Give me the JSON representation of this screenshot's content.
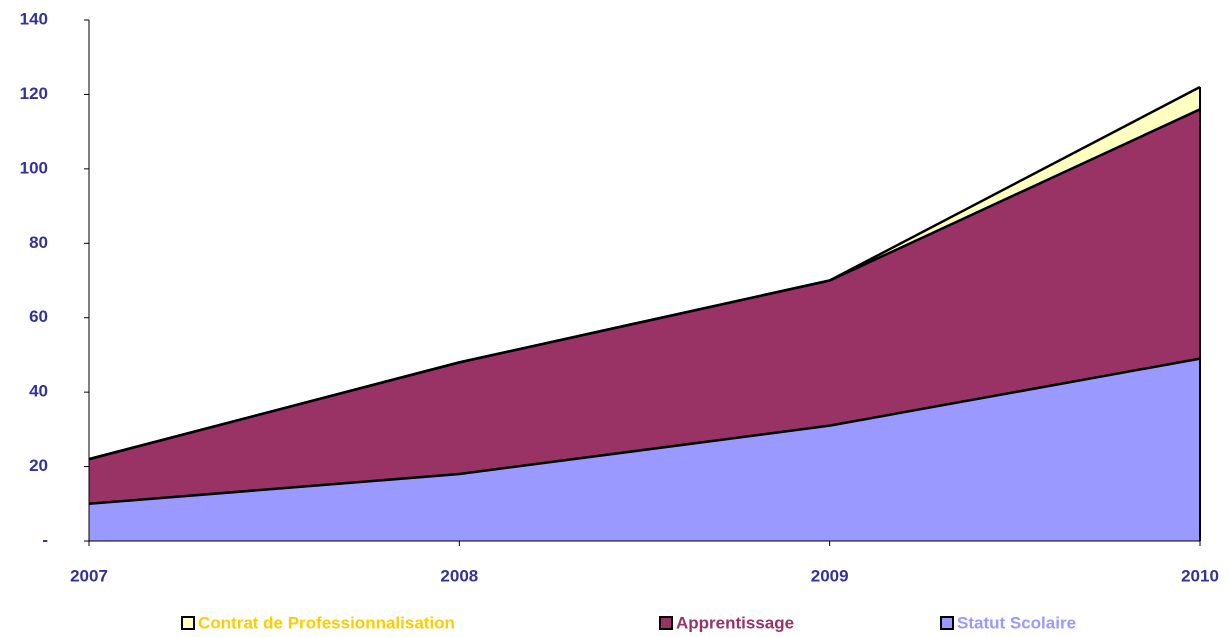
{
  "chart_data": {
    "type": "area",
    "stacked": true,
    "categories": [
      "2007",
      "2008",
      "2009",
      "2010"
    ],
    "series": [
      {
        "name": "Contrat de Professionnalisation",
        "color": "#ffffc0",
        "label_color": "#ffcc00",
        "values": [
          0,
          0,
          0,
          6
        ]
      },
      {
        "name": "Apprentissage",
        "color": "#993366",
        "label_color": "#993366",
        "values": [
          12,
          30,
          39,
          67
        ]
      },
      {
        "name": "Statut Scolaire",
        "color": "#9999ff",
        "label_color": "#9999ff",
        "values": [
          10,
          18,
          31,
          49
        ]
      }
    ],
    "ylim": [
      0,
      140
    ],
    "yticks": [
      {
        "value": 0,
        "label": "-"
      },
      20,
      40,
      60,
      80,
      100,
      120,
      140
    ],
    "axis_color": "#333399",
    "legend": "bottom"
  }
}
